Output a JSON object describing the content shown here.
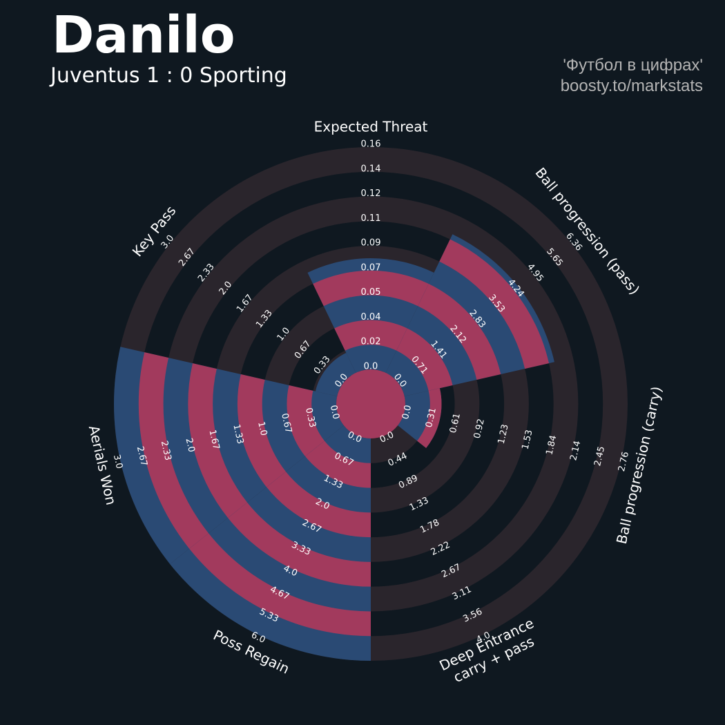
{
  "header": {
    "player": "Danilo",
    "match": "Juventus 1 : 0 Sporting",
    "credit_line1": "'Футбол в цифрах'",
    "credit_line2": "boosty.to/markstats"
  },
  "colors": {
    "background": "#0f1820",
    "ring": "#2a252c",
    "slice": "#2a4a74",
    "slice_stripe": "#a23a5d",
    "center": "#a23a5d"
  },
  "chart_data": {
    "type": "radar",
    "title": "Danilo",
    "subtitle": "Juventus 1 : 0 Sporting",
    "params": [
      {
        "label": [
          "Expected Threat"
        ],
        "value": 0.08,
        "min": 0.0,
        "max": 0.16,
        "ticks": [
          "0.0",
          "0.02",
          "0.04",
          "0.05",
          "0.07",
          "0.09",
          "0.11",
          "0.12",
          "0.14",
          "0.16"
        ]
      },
      {
        "label": [
          "Ball progression (pass)"
        ],
        "value": 4.4,
        "min": 0.0,
        "max": 6.36,
        "ticks": [
          "0.0",
          "0.71",
          "1.41",
          "2.12",
          "2.83",
          "3.53",
          "4.24",
          "4.95",
          "5.65",
          "6.36"
        ]
      },
      {
        "label": [
          "Ball progression (carry)"
        ],
        "value": 0.45,
        "min": 0.0,
        "max": 2.76,
        "ticks": [
          "0.0",
          "0.31",
          "0.61",
          "0.92",
          "1.23",
          "1.53",
          "1.84",
          "2.14",
          "2.45",
          "2.76"
        ]
      },
      {
        "label": [
          "Deep Entrance",
          "carry + pass"
        ],
        "value": 0.0,
        "min": 0.0,
        "max": 4.0,
        "ticks": [
          "0.0",
          "0.44",
          "0.89",
          "1.33",
          "1.78",
          "2.22",
          "2.67",
          "3.11",
          "3.56",
          "4.0"
        ]
      },
      {
        "label": [
          "Poss Regain"
        ],
        "value": 6.0,
        "min": 0.0,
        "max": 6.0,
        "ticks": [
          "0.0",
          "0.67",
          "1.33",
          "2.0",
          "2.67",
          "3.33",
          "4.0",
          "4.67",
          "5.33",
          "6.0"
        ]
      },
      {
        "label": [
          "Aerials Won"
        ],
        "value": 3.0,
        "min": 0.0,
        "max": 3.0,
        "ticks": [
          "0.0",
          "0.33",
          "0.67",
          "1.0",
          "1.33",
          "1.67",
          "2.0",
          "2.33",
          "2.67",
          "3.0"
        ]
      },
      {
        "label": [
          "Key Pass"
        ],
        "value": 0.3,
        "min": 0.0,
        "max": 3.0,
        "ticks": [
          "0.0",
          "0.33",
          "0.67",
          "1.0",
          "1.33",
          "1.67",
          "2.0",
          "2.33",
          "2.67",
          "3.0"
        ]
      }
    ]
  }
}
